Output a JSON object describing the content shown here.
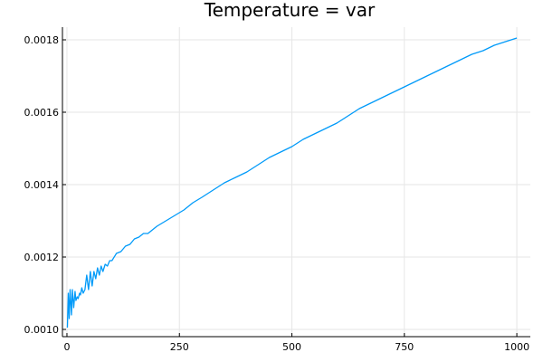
{
  "chart_data": {
    "type": "line",
    "title": "Temperature = var",
    "xlabel": "",
    "ylabel": "",
    "xlim": [
      -10,
      1030
    ],
    "ylim": [
      0.00098,
      0.001835
    ],
    "xticks": [
      0,
      250,
      500,
      750,
      1000
    ],
    "xtick_labels": [
      "0",
      "250",
      "500",
      "750",
      "1000"
    ],
    "yticks": [
      0.001,
      0.0012,
      0.0014,
      0.0016,
      0.0018
    ],
    "ytick_labels": [
      "0.0010",
      "0.0012",
      "0.0014",
      "0.0016",
      "0.0018"
    ],
    "grid": true,
    "legend": "none",
    "series": [
      {
        "color": "#009af9",
        "x": [
          1,
          3,
          5,
          7,
          10,
          12,
          15,
          18,
          20,
          23,
          25,
          28,
          30,
          33,
          36,
          40,
          44,
          48,
          52,
          56,
          60,
          64,
          68,
          72,
          76,
          80,
          85,
          90,
          95,
          100,
          110,
          120,
          130,
          140,
          150,
          160,
          170,
          180,
          190,
          200,
          220,
          240,
          260,
          280,
          300,
          325,
          350,
          375,
          400,
          425,
          450,
          475,
          500,
          525,
          550,
          575,
          600,
          625,
          650,
          675,
          700,
          725,
          750,
          775,
          800,
          825,
          850,
          875,
          900,
          925,
          950,
          975,
          1000
        ],
        "y": [
          0.001005,
          0.0011,
          0.00103,
          0.00111,
          0.00104,
          0.00111,
          0.00106,
          0.001105,
          0.00108,
          0.00109,
          0.001085,
          0.0011,
          0.001095,
          0.001115,
          0.0011,
          0.00111,
          0.00115,
          0.00111,
          0.00116,
          0.00112,
          0.00116,
          0.00114,
          0.00117,
          0.00115,
          0.001175,
          0.00116,
          0.00118,
          0.001175,
          0.00119,
          0.00119,
          0.00121,
          0.001215,
          0.00123,
          0.001235,
          0.00125,
          0.001255,
          0.001265,
          0.001265,
          0.001275,
          0.001285,
          0.0013,
          0.001315,
          0.00133,
          0.00135,
          0.001365,
          0.001385,
          0.001405,
          0.00142,
          0.001435,
          0.001455,
          0.001475,
          0.00149,
          0.001505,
          0.001525,
          0.00154,
          0.001555,
          0.00157,
          0.00159,
          0.00161,
          0.001625,
          0.00164,
          0.001655,
          0.00167,
          0.001685,
          0.0017,
          0.001715,
          0.00173,
          0.001745,
          0.00176,
          0.00177,
          0.001785,
          0.001795,
          0.001805
        ]
      }
    ]
  }
}
